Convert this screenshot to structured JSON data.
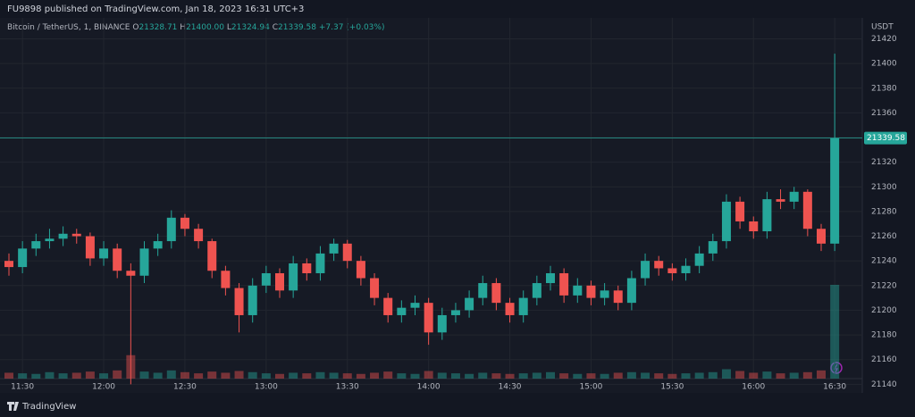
{
  "header": {
    "publisher": "FU9898 published on TradingView.com, Jan 18, 2023 16:31 UTC+3"
  },
  "chart_data": {
    "type": "candlestick",
    "symbol": "Bitcoin / TetherUS, 1, BINANCE",
    "legend": [
      {
        "key": "O",
        "value": "21328.71"
      },
      {
        "key": "H",
        "value": "21400.00"
      },
      {
        "key": "L",
        "value": "21324.94"
      },
      {
        "key": "C",
        "value": "21339.58"
      }
    ],
    "change": "+7.37 (+0.03%)",
    "currency": "USDT",
    "last_price": {
      "value": 21339.58,
      "label": "21339.58"
    },
    "up_color": "#26a69a",
    "down_color": "#ef5350",
    "categories": [
      "11:25",
      "11:30",
      "11:35",
      "11:40",
      "11:45",
      "11:50",
      "11:55",
      "12:00",
      "12:05",
      "12:10",
      "12:15",
      "12:20",
      "12:25",
      "12:30",
      "12:35",
      "12:40",
      "12:45",
      "12:50",
      "12:55",
      "13:00",
      "13:05",
      "13:10",
      "13:15",
      "13:20",
      "13:25",
      "13:30",
      "13:35",
      "13:40",
      "13:45",
      "13:50",
      "13:55",
      "14:00",
      "14:05",
      "14:10",
      "14:15",
      "14:20",
      "14:25",
      "14:30",
      "14:35",
      "14:40",
      "14:45",
      "14:50",
      "14:55",
      "15:00",
      "15:05",
      "15:10",
      "15:15",
      "15:20",
      "15:25",
      "15:30",
      "15:35",
      "15:40",
      "15:45",
      "15:50",
      "15:55",
      "16:00",
      "16:05",
      "16:10",
      "16:15",
      "16:20",
      "16:25",
      "16:30"
    ],
    "open": [
      21240,
      21235,
      21250,
      21256,
      21258,
      21262,
      21260,
      21242,
      21250,
      21232,
      21228,
      21250,
      21256,
      21275,
      21266,
      21256,
      21232,
      21218,
      21196,
      21220,
      21230,
      21216,
      21238,
      21230,
      21246,
      21254,
      21240,
      21226,
      21210,
      21196,
      21202,
      21206,
      21182,
      21196,
      21200,
      21210,
      21222,
      21206,
      21196,
      21210,
      21222,
      21230,
      21212,
      21220,
      21210,
      21216,
      21206,
      21226,
      21240,
      21234,
      21230,
      21236,
      21246,
      21256,
      21288,
      21272,
      21264,
      21290,
      21288,
      21296,
      21266,
      21254
    ],
    "high": [
      21246,
      21256,
      21262,
      21266,
      21268,
      21266,
      21263,
      21256,
      21254,
      21238,
      21256,
      21262,
      21281,
      21278,
      21270,
      21258,
      21236,
      21222,
      21226,
      21236,
      21234,
      21244,
      21242,
      21252,
      21258,
      21257,
      21244,
      21230,
      21214,
      21208,
      21212,
      21210,
      21202,
      21206,
      21216,
      21228,
      21226,
      21210,
      21216,
      21228,
      21236,
      21234,
      21226,
      21224,
      21222,
      21220,
      21232,
      21246,
      21244,
      21238,
      21242,
      21252,
      21262,
      21294,
      21292,
      21276,
      21296,
      21298,
      21300,
      21298,
      21270,
      21408
    ],
    "low": [
      21228,
      21230,
      21244,
      21250,
      21252,
      21254,
      21236,
      21236,
      21226,
      21140,
      21222,
      21244,
      21250,
      21260,
      21250,
      21226,
      21212,
      21182,
      21190,
      21214,
      21210,
      21210,
      21224,
      21224,
      21240,
      21234,
      21220,
      21204,
      21190,
      21190,
      21196,
      21172,
      21176,
      21190,
      21194,
      21204,
      21200,
      21190,
      21190,
      21204,
      21216,
      21206,
      21206,
      21204,
      21204,
      21200,
      21200,
      21220,
      21228,
      21224,
      21224,
      21230,
      21240,
      21250,
      21266,
      21258,
      21258,
      21282,
      21282,
      21260,
      21248,
      21248
    ],
    "close": [
      21235,
      21250,
      21256,
      21258,
      21262,
      21260,
      21242,
      21250,
      21232,
      21228,
      21250,
      21256,
      21275,
      21266,
      21256,
      21232,
      21218,
      21196,
      21220,
      21230,
      21216,
      21238,
      21230,
      21246,
      21254,
      21240,
      21226,
      21210,
      21196,
      21202,
      21206,
      21182,
      21196,
      21200,
      21210,
      21222,
      21206,
      21196,
      21210,
      21222,
      21230,
      21212,
      21220,
      21210,
      21216,
      21206,
      21226,
      21240,
      21234,
      21230,
      21236,
      21246,
      21256,
      21288,
      21272,
      21264,
      21290,
      21288,
      21296,
      21266,
      21254,
      21339.58
    ],
    "volume": [
      10,
      9,
      8,
      11,
      9,
      10,
      12,
      9,
      14,
      40,
      12,
      10,
      14,
      11,
      9,
      12,
      10,
      13,
      11,
      9,
      8,
      10,
      9,
      11,
      10,
      9,
      8,
      10,
      12,
      9,
      8,
      13,
      10,
      9,
      8,
      10,
      9,
      8,
      9,
      10,
      11,
      9,
      8,
      9,
      8,
      10,
      11,
      10,
      9,
      8,
      9,
      10,
      11,
      16,
      13,
      10,
      12,
      9,
      10,
      11,
      14,
      160
    ],
    "ylim": [
      21133,
      21437
    ],
    "yticks": [
      21140,
      21160,
      21180,
      21200,
      21220,
      21240,
      21260,
      21280,
      21300,
      21320,
      21340,
      21360,
      21380,
      21400,
      21420
    ],
    "xticks": [
      "11:30",
      "12:00",
      "12:30",
      "13:00",
      "13:30",
      "14:00",
      "14:30",
      "15:00",
      "15:30",
      "16:00",
      "16:30"
    ],
    "grid": true
  },
  "footer": {
    "brand": "TradingView"
  }
}
